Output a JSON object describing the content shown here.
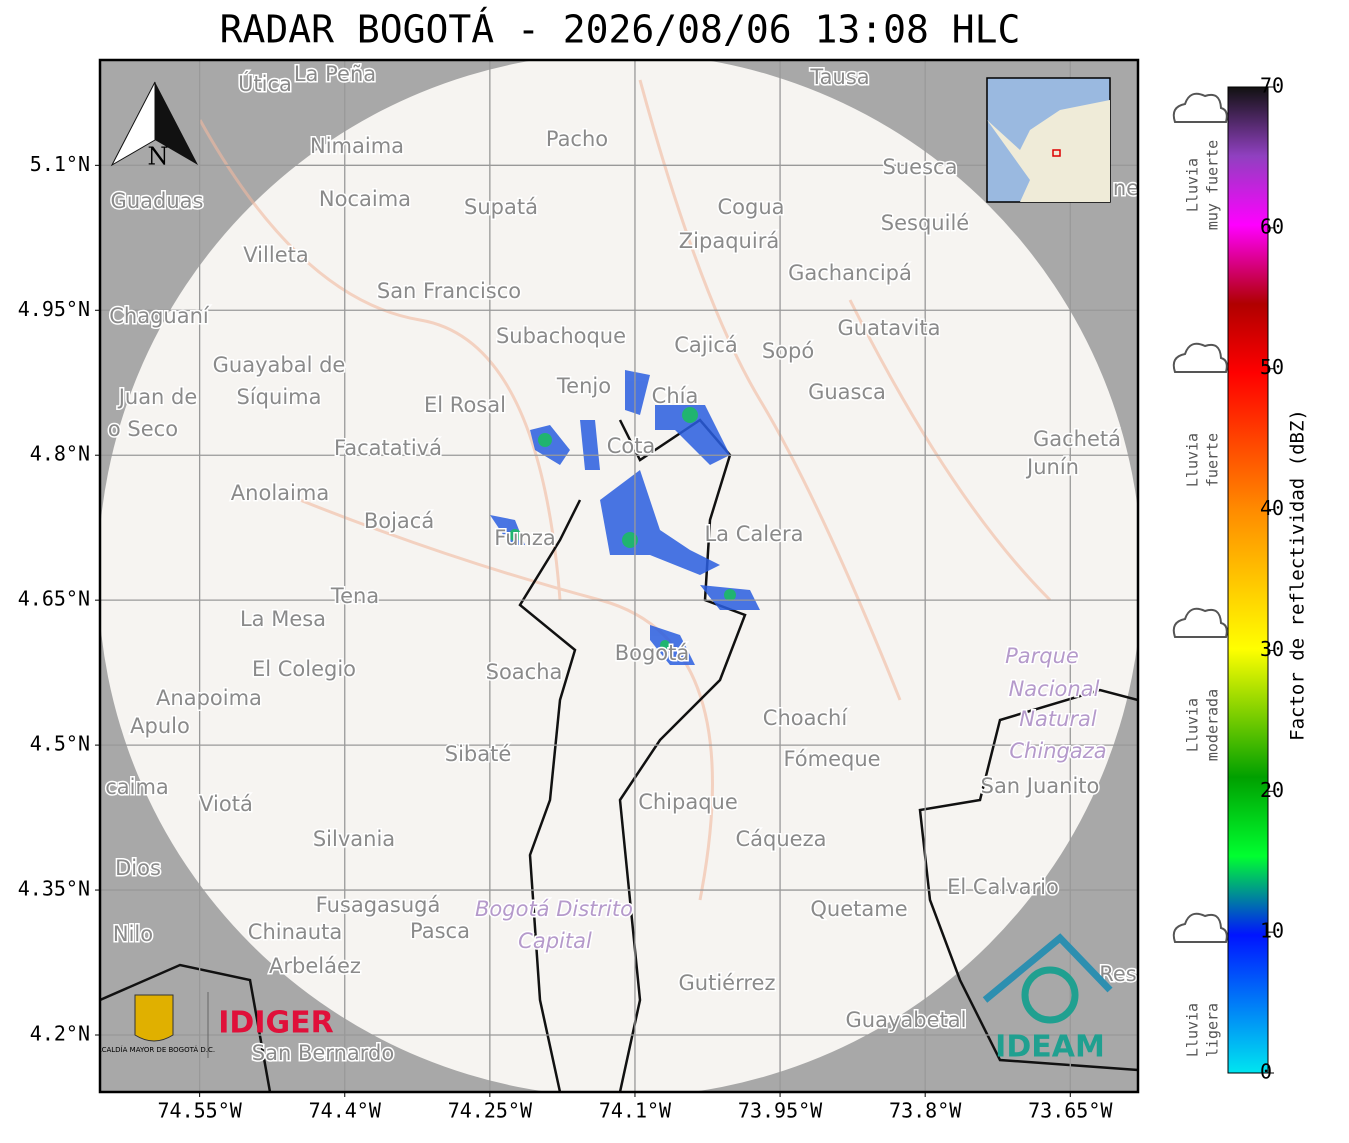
{
  "title": "RADAR BOGOTÁ - 2026/08/06 13:08 HLC",
  "map": {
    "xlim": [
      -74.653,
      -73.58
    ],
    "ylim": [
      4.141,
      5.209
    ],
    "xticks": [
      {
        "value": -74.55,
        "label": "74.55°W"
      },
      {
        "value": -74.4,
        "label": "74.4°W"
      },
      {
        "value": -74.25,
        "label": "74.25°W"
      },
      {
        "value": -74.1,
        "label": "74.1°W"
      },
      {
        "value": -73.95,
        "label": "73.95°W"
      },
      {
        "value": -73.8,
        "label": "73.8°W"
      },
      {
        "value": -73.65,
        "label": "73.65°W"
      }
    ],
    "yticks": [
      {
        "value": 5.1,
        "label": "5.1°N"
      },
      {
        "value": 4.95,
        "label": "4.95°N"
      },
      {
        "value": 4.8,
        "label": "4.8°N"
      },
      {
        "value": 4.65,
        "label": "4.65°N"
      },
      {
        "value": 4.5,
        "label": "4.5°N"
      },
      {
        "value": 4.35,
        "label": "4.35°N"
      },
      {
        "value": 4.2,
        "label": "4.2°N"
      }
    ],
    "north": "N",
    "places": [
      "Útica",
      "La Peña",
      "Tausa",
      "Pacho",
      "Nimaima",
      "Guaduas",
      "Nocaima",
      "Supatá",
      "Cogua",
      "Suesca",
      "Sesquilé",
      "Zipaquirá",
      "Villeta",
      "Gachancipá",
      "San Francisco",
      "Chaguaní",
      "Guatavita",
      "Subachoque",
      "Cajicá",
      "Sopó",
      "Guayabal de",
      "Síquima",
      "Juan de",
      "Tenjo",
      "Chía",
      "Guasca",
      "El Rosal",
      "o Seco",
      "Cota",
      "Facatativá",
      "Gachetá",
      "Junín",
      "Anolaima",
      "Bojacá",
      "La Calera",
      "Funza",
      "Tena",
      "La Mesa",
      "Parque",
      "Nacional",
      "Natural",
      "Chingaza",
      "El Colegio",
      "Soacha",
      "Bogotá",
      "Anapoima",
      "Apulo",
      "Choachí",
      "Fómeque",
      "Sibaté",
      "San Juanito",
      "caima",
      "Viotá",
      "Chipaque",
      "Silvania",
      "Cáqueza",
      "Dios",
      "El Calvario",
      "Fusagasugá",
      "Quetame",
      "Bogotá Distrito",
      "Capital",
      "Nilo",
      "Chinauta",
      "Pasca",
      "Arbeláez",
      "Gutiérrez",
      "Res",
      "Guayabetal",
      "San Bernardo",
      "ne"
    ],
    "logos": {
      "alcaldia": "ALCALDÍA MAYOR DE BOGOTÁ D.C.",
      "idiger": "IDIGER",
      "ideam": "IDEAM"
    }
  },
  "colorbar": {
    "label": "Factor de reflectividad (dBZ)",
    "lim": [
      0,
      70
    ],
    "ticks": [
      0,
      10,
      20,
      30,
      40,
      50,
      60,
      70
    ],
    "legend": [
      [
        "Lluvia",
        "muy fuerte"
      ],
      [
        "Lluvia",
        "fuerte"
      ],
      [
        "Lluvia",
        "moderada"
      ],
      [
        "Lluvia",
        "ligera"
      ]
    ]
  }
}
